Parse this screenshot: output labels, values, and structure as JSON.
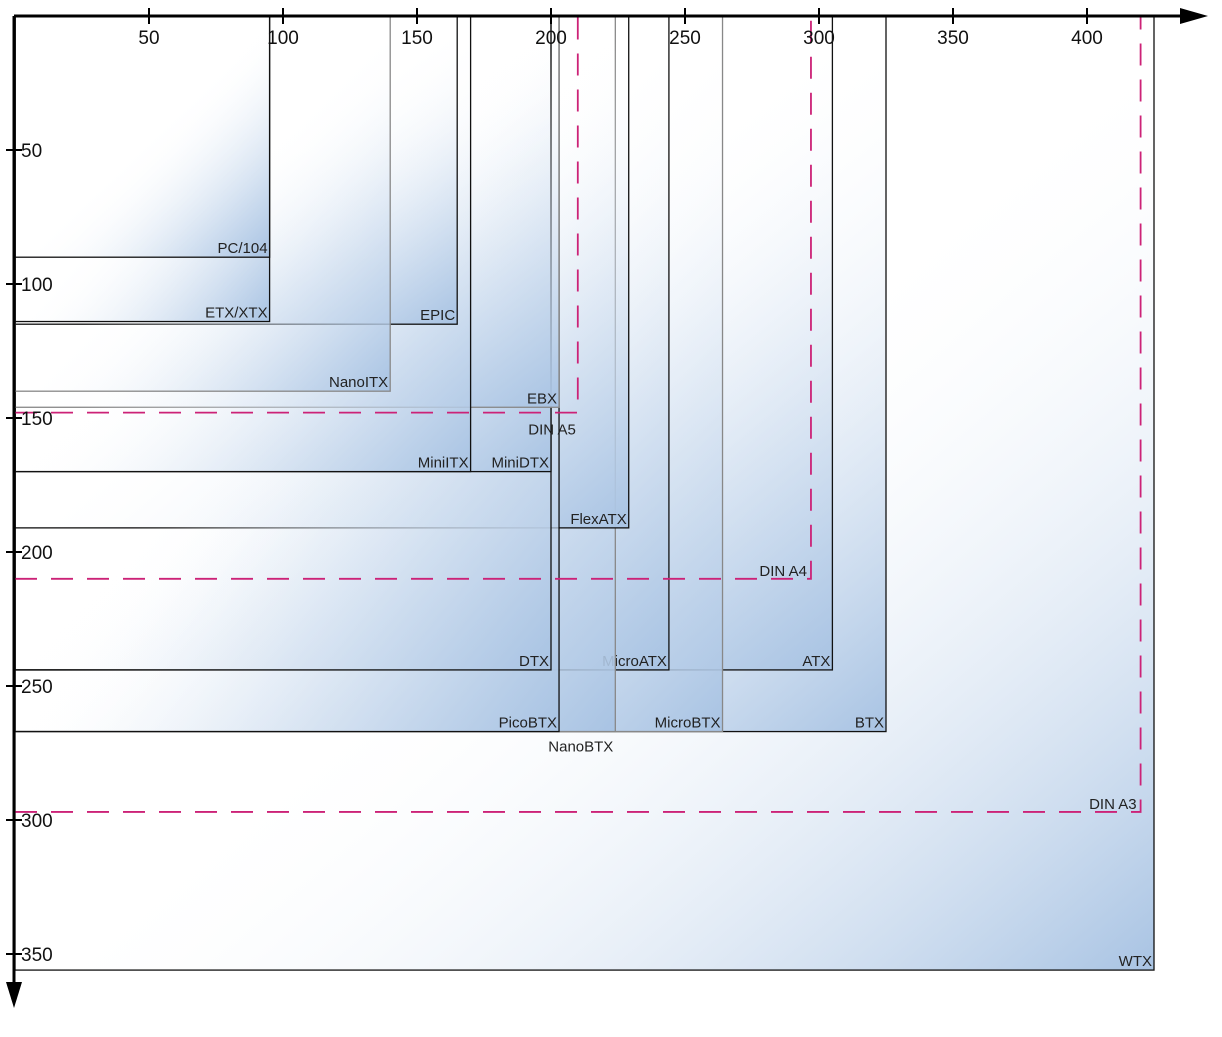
{
  "x_axis": {
    "ticks": [
      {
        "value": 50,
        "label": "50"
      },
      {
        "value": 100,
        "label": "100"
      },
      {
        "value": 150,
        "label": "150"
      },
      {
        "value": 200,
        "label": "200"
      },
      {
        "value": 250,
        "label": "250"
      },
      {
        "value": 300,
        "label": "300"
      },
      {
        "value": 350,
        "label": "350"
      },
      {
        "value": 400,
        "label": "400"
      }
    ]
  },
  "y_axis": {
    "ticks": [
      {
        "value": 50,
        "label": "50"
      },
      {
        "value": 100,
        "label": "100"
      },
      {
        "value": 150,
        "label": "150"
      },
      {
        "value": 200,
        "label": "200"
      },
      {
        "value": 250,
        "label": "250"
      },
      {
        "value": 300,
        "label": "300"
      },
      {
        "value": 350,
        "label": "350"
      }
    ]
  },
  "colors": {
    "board_gradient_end": "#a8c3e3",
    "board_outline": "#111111",
    "board_outline_light": "#888888",
    "din_dash": "#cc2277",
    "axis": "#000000"
  },
  "boards": [
    {
      "label": "WTX",
      "width": 425,
      "depth": 356,
      "label_pos": "inside-corner"
    },
    {
      "label": "BTX",
      "width": 325,
      "depth": 267,
      "label_pos": "inside-corner"
    },
    {
      "label": "ATX",
      "width": 305,
      "depth": 244,
      "label_pos": "inside-corner"
    },
    {
      "label": "MicroBTX",
      "width": 264,
      "depth": 267,
      "label_pos": "inside-corner",
      "light": true
    },
    {
      "label": "MicroATX",
      "width": 244,
      "depth": 244,
      "label_pos": "inside-corner"
    },
    {
      "label": "NanoBTX",
      "width": 224,
      "depth": 267,
      "label_pos": "below-corner",
      "light": true
    },
    {
      "label": "FlexATX",
      "width": 229,
      "depth": 191,
      "label_pos": "inside-corner"
    },
    {
      "label": "PicoBTX",
      "width": 203,
      "depth": 267,
      "label_pos": "inside-corner"
    },
    {
      "label": "DTX",
      "width": 200,
      "depth": 244,
      "label_pos": "inside-corner"
    },
    {
      "label": "MiniDTX",
      "width": 200,
      "depth": 170,
      "label_pos": "inside-corner"
    },
    {
      "label": "EBX",
      "width": 203,
      "depth": 146,
      "label_pos": "inside-corner",
      "light": true
    },
    {
      "label": "MiniITX",
      "width": 170,
      "depth": 170,
      "label_pos": "inside-corner"
    },
    {
      "label": "EPIC",
      "width": 165,
      "depth": 115,
      "label_pos": "inside-corner"
    },
    {
      "label": "NanoITX",
      "width": 140,
      "depth": 140,
      "label_pos": "inside-corner",
      "light": true
    },
    {
      "label": "ETX/XTX",
      "width": 95,
      "depth": 114,
      "label_pos": "inside-corner"
    },
    {
      "label": "PC/104",
      "width": 95,
      "depth": 90,
      "label_pos": "inside-corner"
    }
  ],
  "din_papers": [
    {
      "label": "DIN A3",
      "width": 420,
      "depth": 297
    },
    {
      "label": "DIN A4",
      "width": 297,
      "depth": 210
    },
    {
      "label": "DIN A5",
      "width": 210,
      "depth": 148,
      "label_pos": "below"
    }
  ]
}
